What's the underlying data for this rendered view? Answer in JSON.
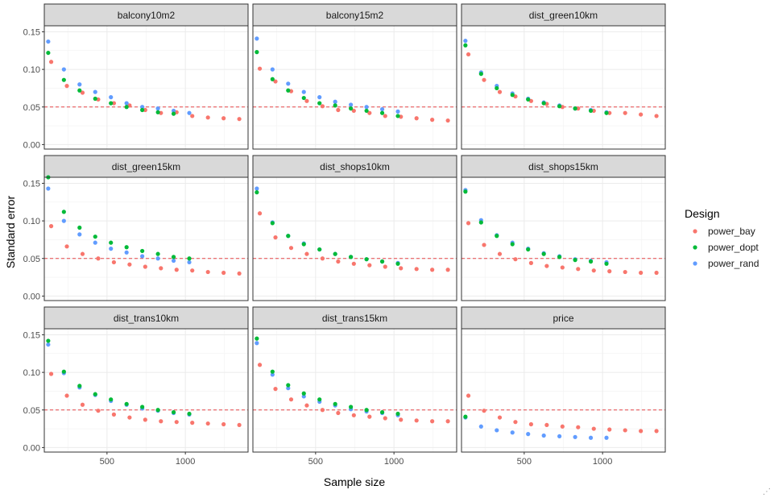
{
  "chart_data": {
    "type": "scatter",
    "xlabel": "Sample size",
    "ylabel": "Standard error",
    "xlim": [
      100,
      1400
    ],
    "ylim": [
      -0.006,
      0.158
    ],
    "x_ticks": [
      500,
      1000
    ],
    "x_tick_labels": [
      "500",
      "1000"
    ],
    "y_ticks": [
      0.0,
      0.05,
      0.1,
      0.15
    ],
    "y_tick_labels": [
      "0.00",
      "0.05",
      "0.10",
      "0.15"
    ],
    "reference_line": {
      "y": 0.05,
      "style": "dashed",
      "color": "#e8474a"
    },
    "grid": true,
    "legend": {
      "title": "Design",
      "position": "right",
      "entries": [
        {
          "name": "power_bay",
          "color": "#f8766d"
        },
        {
          "name": "power_dopt",
          "color": "#00ba38"
        },
        {
          "name": "power_rand",
          "color": "#619cff"
        }
      ]
    },
    "facets": [
      {
        "title": "balcony10m2",
        "series": [
          {
            "name": "power_bay",
            "x": [
              144,
              244,
              344,
              444,
              544,
              644,
              744,
              844,
              944,
              1044,
              1144,
              1244,
              1344
            ],
            "y": [
              0.11,
              0.078,
              0.069,
              0.06,
              0.055,
              0.052,
              0.046,
              0.042,
              0.043,
              0.038,
              0.036,
              0.035,
              0.034
            ]
          },
          {
            "name": "power_dopt",
            "x": [
              125,
              225,
              325,
              425,
              525,
              625,
              725,
              825,
              925
            ],
            "y": [
              0.122,
              0.086,
              0.072,
              0.061,
              0.055,
              0.05,
              0.046,
              0.043,
              0.041
            ]
          },
          {
            "name": "power_rand",
            "x": [
              125,
              225,
              325,
              425,
              525,
              625,
              725,
              825,
              925,
              1025
            ],
            "y": [
              0.137,
              0.1,
              0.08,
              0.07,
              0.063,
              0.055,
              0.05,
              0.048,
              0.045,
              0.042
            ]
          }
        ]
      },
      {
        "title": "balcony15m2",
        "series": [
          {
            "name": "power_bay",
            "x": [
              144,
              244,
              344,
              444,
              544,
              644,
              744,
              844,
              944,
              1044,
              1144,
              1244,
              1344
            ],
            "y": [
              0.101,
              0.084,
              0.071,
              0.058,
              0.051,
              0.046,
              0.045,
              0.042,
              0.038,
              0.037,
              0.035,
              0.033,
              0.032
            ]
          },
          {
            "name": "power_dopt",
            "x": [
              125,
              225,
              325,
              425,
              525,
              625,
              725,
              825,
              925,
              1025
            ],
            "y": [
              0.123,
              0.087,
              0.072,
              0.062,
              0.055,
              0.052,
              0.048,
              0.045,
              0.042,
              0.038
            ]
          },
          {
            "name": "power_rand",
            "x": [
              125,
              225,
              325,
              425,
              525,
              625,
              725,
              825,
              925,
              1025
            ],
            "y": [
              0.141,
              0.1,
              0.081,
              0.07,
              0.063,
              0.057,
              0.053,
              0.05,
              0.047,
              0.044
            ]
          }
        ]
      },
      {
        "title": "dist_green10km",
        "series": [
          {
            "name": "power_bay",
            "x": [
              144,
              244,
              344,
              444,
              544,
              644,
              744,
              844,
              944,
              1044,
              1144,
              1244,
              1344
            ],
            "y": [
              0.12,
              0.086,
              0.07,
              0.064,
              0.058,
              0.054,
              0.05,
              0.048,
              0.045,
              0.042,
              0.042,
              0.04,
              0.038
            ]
          },
          {
            "name": "power_dopt",
            "x": [
              125,
              225,
              325,
              425,
              525,
              625,
              725,
              825,
              925,
              1025
            ],
            "y": [
              0.132,
              0.094,
              0.075,
              0.066,
              0.06,
              0.055,
              0.051,
              0.048,
              0.045,
              0.042
            ]
          },
          {
            "name": "power_rand",
            "x": [
              125,
              225,
              325,
              425,
              525,
              625,
              725,
              825,
              925,
              1025
            ],
            "y": [
              0.138,
              0.096,
              0.078,
              0.068,
              0.061,
              0.056,
              0.052,
              0.048,
              0.046,
              0.043
            ]
          }
        ]
      },
      {
        "title": "dist_green15km",
        "series": [
          {
            "name": "power_bay",
            "x": [
              144,
              244,
              344,
              444,
              544,
              644,
              744,
              844,
              944,
              1044,
              1144,
              1244,
              1344
            ],
            "y": [
              0.093,
              0.066,
              0.056,
              0.05,
              0.045,
              0.042,
              0.039,
              0.037,
              0.035,
              0.034,
              0.032,
              0.031,
              0.03
            ]
          },
          {
            "name": "power_dopt",
            "x": [
              125,
              225,
              325,
              425,
              525,
              625,
              725,
              825,
              925,
              1025
            ],
            "y": [
              0.158,
              0.112,
              0.091,
              0.079,
              0.071,
              0.065,
              0.06,
              0.056,
              0.052,
              0.05
            ]
          },
          {
            "name": "power_rand",
            "x": [
              125,
              225,
              325,
              425,
              525,
              625,
              725,
              825,
              925,
              1025
            ],
            "y": [
              0.143,
              0.1,
              0.082,
              0.071,
              0.063,
              0.058,
              0.053,
              0.05,
              0.047,
              0.045
            ]
          }
        ]
      },
      {
        "title": "dist_shops10km",
        "series": [
          {
            "name": "power_bay",
            "x": [
              144,
              244,
              344,
              444,
              544,
              644,
              744,
              844,
              944,
              1044,
              1144,
              1244,
              1344
            ],
            "y": [
              0.11,
              0.078,
              0.064,
              0.056,
              0.05,
              0.046,
              0.043,
              0.041,
              0.039,
              0.037,
              0.036,
              0.035,
              0.035
            ]
          },
          {
            "name": "power_dopt",
            "x": [
              125,
              225,
              325,
              425,
              525,
              625,
              725,
              825,
              925,
              1025
            ],
            "y": [
              0.138,
              0.097,
              0.08,
              0.069,
              0.062,
              0.056,
              0.052,
              0.049,
              0.046,
              0.043
            ]
          },
          {
            "name": "power_rand",
            "x": [
              125,
              225,
              325,
              425,
              525,
              625,
              725,
              825,
              925,
              1025
            ],
            "y": [
              0.143,
              0.098,
              0.08,
              0.07,
              0.062,
              0.056,
              0.052,
              0.049,
              0.046,
              0.044
            ]
          }
        ]
      },
      {
        "title": "dist_shops15km",
        "series": [
          {
            "name": "power_bay",
            "x": [
              144,
              244,
              344,
              444,
              544,
              644,
              744,
              844,
              944,
              1044,
              1144,
              1244,
              1344
            ],
            "y": [
              0.097,
              0.068,
              0.056,
              0.049,
              0.044,
              0.04,
              0.038,
              0.036,
              0.034,
              0.033,
              0.032,
              0.031,
              0.031
            ]
          },
          {
            "name": "power_dopt",
            "x": [
              125,
              225,
              325,
              425,
              525,
              625,
              725,
              825,
              925,
              1025
            ],
            "y": [
              0.139,
              0.098,
              0.08,
              0.069,
              0.062,
              0.056,
              0.052,
              0.048,
              0.046,
              0.043
            ]
          },
          {
            "name": "power_rand",
            "x": [
              125,
              225,
              325,
              425,
              525,
              625,
              725,
              825,
              925,
              1025
            ],
            "y": [
              0.141,
              0.101,
              0.081,
              0.071,
              0.063,
              0.057,
              0.053,
              0.049,
              0.047,
              0.045
            ]
          }
        ]
      },
      {
        "title": "dist_trans10km",
        "series": [
          {
            "name": "power_bay",
            "x": [
              144,
              244,
              344,
              444,
              544,
              644,
              744,
              844,
              944,
              1044,
              1144,
              1244,
              1344
            ],
            "y": [
              0.098,
              0.069,
              0.057,
              0.049,
              0.044,
              0.04,
              0.037,
              0.035,
              0.034,
              0.033,
              0.032,
              0.031,
              0.03
            ]
          },
          {
            "name": "power_dopt",
            "x": [
              125,
              225,
              325,
              425,
              525,
              625,
              725,
              825,
              925,
              1025
            ],
            "y": [
              0.142,
              0.101,
              0.082,
              0.071,
              0.064,
              0.058,
              0.054,
              0.05,
              0.047,
              0.045
            ]
          },
          {
            "name": "power_rand",
            "x": [
              125,
              225,
              325,
              425,
              525,
              625,
              725,
              825,
              925,
              1025
            ],
            "y": [
              0.137,
              0.099,
              0.08,
              0.07,
              0.062,
              0.057,
              0.052,
              0.049,
              0.046,
              0.044
            ]
          }
        ]
      },
      {
        "title": "dist_trans15km",
        "series": [
          {
            "name": "power_bay",
            "x": [
              144,
              244,
              344,
              444,
              544,
              644,
              744,
              844,
              944,
              1044,
              1144,
              1244,
              1344
            ],
            "y": [
              0.11,
              0.078,
              0.064,
              0.056,
              0.05,
              0.046,
              0.043,
              0.041,
              0.039,
              0.037,
              0.036,
              0.035,
              0.035
            ]
          },
          {
            "name": "power_dopt",
            "x": [
              125,
              225,
              325,
              425,
              525,
              625,
              725,
              825,
              925,
              1025
            ],
            "y": [
              0.145,
              0.101,
              0.083,
              0.072,
              0.064,
              0.058,
              0.054,
              0.05,
              0.047,
              0.045
            ]
          },
          {
            "name": "power_rand",
            "x": [
              125,
              225,
              325,
              425,
              525,
              625,
              725,
              825,
              925,
              1025
            ],
            "y": [
              0.139,
              0.097,
              0.079,
              0.068,
              0.061,
              0.056,
              0.051,
              0.048,
              0.046,
              0.043
            ]
          }
        ]
      },
      {
        "title": "price",
        "series": [
          {
            "name": "power_bay",
            "x": [
              144,
              244,
              344,
              444,
              544,
              644,
              744,
              844,
              944,
              1044,
              1144,
              1244,
              1344
            ],
            "y": [
              0.069,
              0.049,
              0.04,
              0.034,
              0.031,
              0.03,
              0.028,
              0.027,
              0.025,
              0.024,
              0.023,
              0.022,
              0.022
            ]
          },
          {
            "name": "power_dopt",
            "x": [
              125
            ],
            "y": [
              0.041
            ]
          },
          {
            "name": "power_rand",
            "x": [
              125,
              225,
              325,
              425,
              525,
              625,
              725,
              825,
              925,
              1025
            ],
            "y": [
              0.04,
              0.028,
              0.023,
              0.02,
              0.018,
              0.016,
              0.015,
              0.014,
              0.013,
              0.013
            ]
          }
        ]
      }
    ]
  }
}
